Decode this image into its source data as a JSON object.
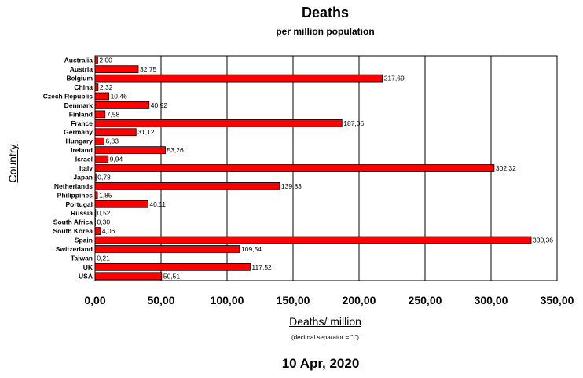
{
  "chart_data": {
    "type": "bar",
    "orientation": "horizontal",
    "title": "Deaths",
    "subtitle": "per million population",
    "ylabel": "Country",
    "xlabel": "Deaths/ million",
    "note": "(decimal separator = \",\")",
    "footer": "10 Apr, 2020",
    "categories": [
      "Australia",
      "Austria",
      "Belgium",
      "China",
      "Czech Republic",
      "Denmark",
      "Finland",
      "France",
      "Germany",
      "Hungary",
      "Ireland",
      "Israel",
      "Italy",
      "Japan",
      "Netherlands",
      "Philippines",
      "Portugal",
      "Russia",
      "South Africa",
      "South Korea",
      "Spain",
      "Switzerland",
      "Taiwan",
      "UK",
      "USA"
    ],
    "values": [
      2.0,
      32.75,
      217.69,
      2.32,
      10.46,
      40.92,
      7.58,
      187.06,
      31.12,
      6.83,
      53.26,
      9.94,
      302.32,
      0.78,
      139.83,
      1.85,
      40.11,
      0.52,
      0.3,
      4.06,
      330.36,
      109.54,
      0.21,
      117.52,
      50.51
    ],
    "value_labels": [
      "2,00",
      "32,75",
      "217,69",
      "2,32",
      "10,46",
      "40,92",
      "7,58",
      "187,06",
      "31,12",
      "6,83",
      "53,26",
      "9,94",
      "302,32",
      "0,78",
      "139,83",
      "1,85",
      "40,11",
      "0,52",
      "0,30",
      "4,06",
      "330,36",
      "109,54",
      "0,21",
      "117,52",
      "50,51"
    ],
    "xlim": [
      0,
      350
    ],
    "xticks": [
      0,
      50,
      100,
      150,
      200,
      250,
      300,
      350
    ],
    "xtick_labels": [
      "0,00",
      "50,00",
      "100,00",
      "150,00",
      "200,00",
      "250,00",
      "300,00",
      "350,00"
    ],
    "grid": "vertical",
    "bar_color": "#ff0000",
    "bar_edge_color": "#000000"
  }
}
